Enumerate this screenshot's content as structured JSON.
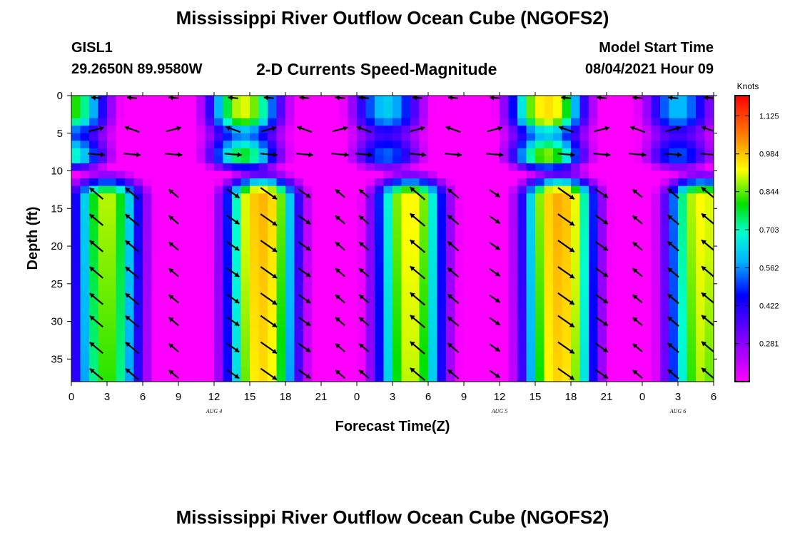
{
  "header": {
    "title": "Mississippi River Outflow Ocean Cube (NGOFS2)",
    "station_id": "GISL1",
    "station_coords": "29.2650N  89.9580W",
    "model_start_label": "Model Start Time",
    "model_start_value": "08/04/2021 Hour 09"
  },
  "footer": {
    "title": "Mississippi River Outflow Ocean Cube (NGOFS2)"
  },
  "chart_data": {
    "type": "heatmap",
    "title": "2-D Currents Speed-Magnitude",
    "xlabel": "Forecast Time(Z)",
    "ylabel": "Depth (ft)",
    "xlim": [
      0,
      54
    ],
    "ylim": [
      38,
      0
    ],
    "x_ticks": [
      "0",
      "3",
      "6",
      "9",
      "12",
      "15",
      "18",
      "21",
      "0",
      "3",
      "6",
      "9",
      "12",
      "15",
      "18",
      "21",
      "0",
      "3",
      "6"
    ],
    "y_ticks": [
      0,
      5,
      10,
      15,
      20,
      25,
      30,
      35
    ],
    "date_labels": [
      {
        "label": "AUG 4",
        "hour": 12
      },
      {
        "label": "AUG 5",
        "hour": 36
      },
      {
        "label": "AUG 6",
        "hour": 51
      }
    ],
    "colorbar": {
      "title": "Knots",
      "ticks": [
        "1.125",
        "0.984",
        "0.844",
        "0.703",
        "0.562",
        "0.422",
        "0.281"
      ],
      "range": [
        0.14,
        1.2
      ]
    },
    "speed_model": {
      "upper_layer_peaks": [
        {
          "hour": 0,
          "speed": 0.82
        },
        {
          "hour": 14.5,
          "speed": 0.92
        },
        {
          "hour": 26.5,
          "speed": 0.62
        },
        {
          "hour": 40,
          "speed": 1.02
        },
        {
          "hour": 51,
          "speed": 0.6
        }
      ],
      "lower_layer_peaks": [
        {
          "hour": 3,
          "speed": 0.9
        },
        {
          "hour": 16,
          "speed": 1.12
        },
        {
          "hour": 28.5,
          "speed": 0.98
        },
        {
          "hour": 41,
          "speed": 1.14
        },
        {
          "hour": 53,
          "speed": 0.96
        }
      ],
      "minima": [
        {
          "hour": 9,
          "speed": 0.16
        },
        {
          "hour": 21.5,
          "speed": 0.3
        },
        {
          "hour": 33.5,
          "speed": 0.26
        },
        {
          "hour": 47,
          "speed": 0.26
        }
      ]
    },
    "vectors": {
      "hours": [
        1.5,
        4.5,
        8,
        13,
        16,
        19,
        22,
        24,
        28.5,
        31.5,
        35,
        41,
        44,
        47,
        50,
        53
      ],
      "depths": [
        0.3,
        4.5,
        7.8,
        13,
        16.5,
        20,
        23.5,
        27,
        30,
        33.5,
        37
      ],
      "description": "flow arrows; upper layer toward west, lower layer alternating ebb/flood"
    }
  }
}
